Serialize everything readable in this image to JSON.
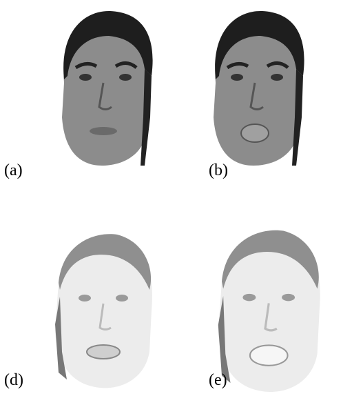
{
  "panels": [
    {
      "label": "(a)"
    },
    {
      "label": "(b)"
    },
    {
      "label": "(d)"
    },
    {
      "label": "(e)"
    }
  ]
}
